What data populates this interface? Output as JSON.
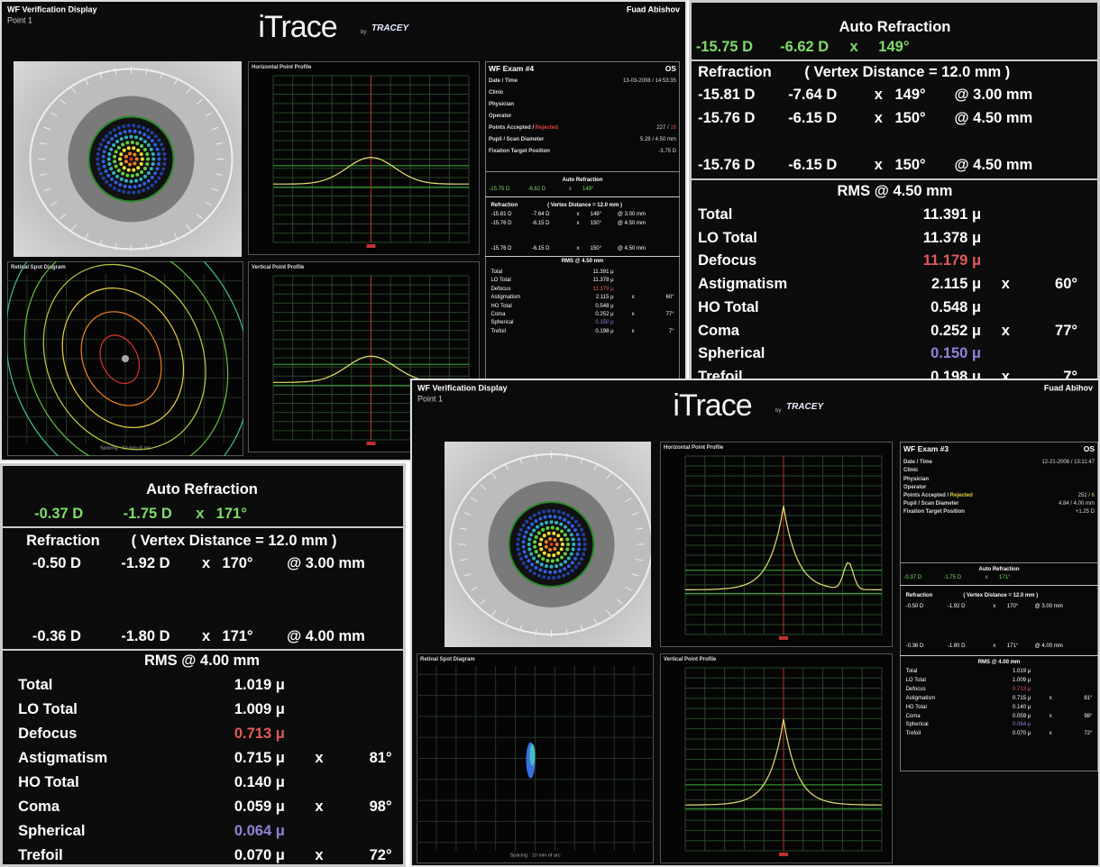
{
  "screens": [
    {
      "title": "WF Verification Display",
      "point": "Point 1",
      "brand": "iTrace",
      "by": "by",
      "company": "TRACEY",
      "user": "Fuad Abishov",
      "plots": {
        "horizontal": "Horizontal Point Profile",
        "vertical": "Vertical Point Profile",
        "spot": "Retinal Spot Diagram",
        "spacing": "Spacing : 10 min of arc"
      }
    },
    {
      "title": "WF Verification Display",
      "point": "Point 1",
      "brand": "iTrace",
      "by": "by",
      "company": "TRACEY",
      "user": "Fuad Abihov",
      "plots": {
        "horizontal": "Horizontal Point Profile",
        "vertical": "Vertical Point Profile",
        "spot": "Retinal Spot Diagram",
        "spacing": "Spacing : 10 min of arc"
      }
    }
  ],
  "exams": [
    {
      "exam": "WF Exam  #4",
      "eye": "OS",
      "rejected_color": "#e04040",
      "info": [
        {
          "label": "Date / Time",
          "value": "13-03-2008 / 14:53:35"
        },
        {
          "label": "Clinic"
        },
        {
          "label": "Physician"
        },
        {
          "label": "Operator"
        },
        {
          "label": "Points Accepted /",
          "label_red": "Rejected",
          "value": "227 /",
          "value_red": "28"
        },
        {
          "label": "Pupil / Scan Diameter",
          "value": "5.28 / 4.50 mm"
        },
        {
          "label": "Fixation Target Position",
          "value": "-3.75 D"
        }
      ],
      "auto_refraction": {
        "title": "Auto Refraction",
        "values": [
          "-15.75 D",
          "-6.62 D",
          "x",
          "149°"
        ]
      },
      "refraction": {
        "label": "Refraction",
        "vertex": "( Vertex Distance = 12.0 mm )",
        "rows": [
          [
            "-15.81 D",
            "-7.64 D",
            "x",
            "149°",
            "@ 3.00 mm"
          ],
          [
            "-15.76 D",
            "-6.15 D",
            "x",
            "150°",
            "@ 4.50 mm"
          ],
          [
            "-15.76 D",
            "-6.15 D",
            "x",
            "150°",
            "@ 4.50 mm"
          ]
        ]
      },
      "rms": {
        "title": "RMS @ 4.50 mm",
        "rows": [
          {
            "label": "Total",
            "value": "11.391 μ"
          },
          {
            "label": "LO Total",
            "value": "11.378 μ"
          },
          {
            "label": "Defocus",
            "value": "11.179 μ",
            "color": "#e05a5a"
          },
          {
            "label": "Astigmatism",
            "value": "2.115 μ",
            "axis": "x",
            "angle": "60°"
          },
          {
            "label": "HO Total",
            "value": "0.548 μ"
          },
          {
            "label": "Coma",
            "value": "0.252 μ",
            "axis": "x",
            "angle": "77°"
          },
          {
            "label": "Spherical",
            "value": "0.150 μ",
            "color": "#8c84d8"
          },
          {
            "label": "Trefoil",
            "value": "0.198 μ",
            "axis": "x",
            "angle": "7°"
          }
        ]
      }
    },
    {
      "exam": "WF Exam  #3",
      "eye": "OS",
      "rejected_color": "#e8d040",
      "info": [
        {
          "label": "Date / Time",
          "value": "12-21-2006 / 13:11:47"
        },
        {
          "label": "Clinic"
        },
        {
          "label": "Physician"
        },
        {
          "label": "Operator"
        },
        {
          "label": "Points Accepted /",
          "label_red": "Rejected",
          "value": "251 /",
          "value_red": "6"
        },
        {
          "label": "Pupil / Scan Diameter",
          "value": "4.84 / 4.00 mm"
        },
        {
          "label": "Fixation Target Position",
          "value": "+1.25 D"
        }
      ],
      "auto_refraction": {
        "title": "Auto Refraction",
        "values": [
          "-0.37 D",
          "-1.75 D",
          "x",
          "171°"
        ]
      },
      "refraction": {
        "label": "Refraction",
        "vertex": "( Vertex Distance = 12.0 mm )",
        "rows": [
          [
            "-0.50 D",
            "-1.92 D",
            "x",
            "170°",
            "@ 3.00 mm"
          ],
          [
            "-0.36 D",
            "-1.80 D",
            "x",
            "171°",
            "@ 4.00 mm"
          ]
        ]
      },
      "rms": {
        "title": "RMS @ 4.00 mm",
        "rows": [
          {
            "label": "Total",
            "value": "1.019 μ"
          },
          {
            "label": "LO Total",
            "value": "1.009 μ"
          },
          {
            "label": "Defocus",
            "value": "0.713 μ",
            "color": "#e05a5a"
          },
          {
            "label": "Astigmatism",
            "value": "0.715 μ",
            "axis": "x",
            "angle": "81°"
          },
          {
            "label": "HO Total",
            "value": "0.140 μ"
          },
          {
            "label": "Coma",
            "value": "0.059 μ",
            "axis": "x",
            "angle": "98°"
          },
          {
            "label": "Spherical",
            "value": "0.064 μ",
            "color": "#8c84d8"
          },
          {
            "label": "Trefoil",
            "value": "0.070 μ",
            "axis": "x",
            "angle": "72°"
          }
        ]
      }
    }
  ]
}
